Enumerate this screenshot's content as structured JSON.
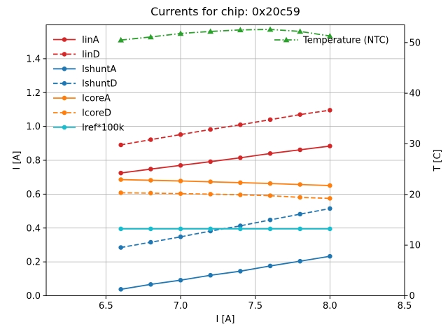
{
  "figure": {
    "background": "#ffffff",
    "text_color": "#000000",
    "grid_color": "#b0b0b0",
    "spine_color": "#000000"
  },
  "chart_data": {
    "type": "line",
    "title": "Currents for chip: 0x20c59",
    "xlabel": "I [A]",
    "ylabel": "I [A]",
    "ylabel_right": "T [C]",
    "grid": true,
    "legend_position": "upper left",
    "temperature_legend_position": "upper right",
    "xlim": [
      6.1,
      8.5
    ],
    "ylim_left": [
      0,
      1.6
    ],
    "ylim_right": [
      0,
      53.5
    ],
    "x_ticks": {
      "values": [
        6.5,
        7.0,
        7.5,
        8.0,
        8.5
      ],
      "labels": [
        "6.5",
        "7.0",
        "7.5",
        "8.0",
        "8.5"
      ]
    },
    "y_ticks_left": {
      "values": [
        0.0,
        0.2,
        0.4,
        0.6,
        0.8,
        1.0,
        1.2,
        1.4
      ],
      "labels": [
        "0.0",
        "0.2",
        "0.4",
        "0.6",
        "0.8",
        "1.0",
        "1.2",
        "1.4"
      ]
    },
    "y_ticks_right": {
      "values": [
        0,
        10,
        20,
        30,
        40,
        50
      ],
      "labels": [
        "0",
        "10",
        "20",
        "30",
        "40",
        "50"
      ]
    },
    "x": [
      6.6,
      6.8,
      7.0,
      7.2,
      7.4,
      7.6,
      7.8,
      8.0
    ],
    "series": [
      {
        "name": "IinA",
        "axis": "left",
        "color": "#d62728",
        "line_style": "solid",
        "marker": "circle",
        "values": [
          0.725,
          0.748,
          0.77,
          0.792,
          0.815,
          0.84,
          0.862,
          0.884
        ]
      },
      {
        "name": "IinD",
        "axis": "left",
        "color": "#d62728",
        "line_style": "dashed",
        "marker": "circle",
        "values": [
          0.891,
          0.922,
          0.952,
          0.982,
          1.01,
          1.04,
          1.07,
          1.096
        ]
      },
      {
        "name": "IshuntA",
        "axis": "left",
        "color": "#1f77b4",
        "line_style": "solid",
        "marker": "circle",
        "values": [
          0.038,
          0.067,
          0.092,
          0.121,
          0.145,
          0.176,
          0.204,
          0.233
        ]
      },
      {
        "name": "IshuntD",
        "axis": "left",
        "color": "#1f77b4",
        "line_style": "dashed",
        "marker": "circle",
        "values": [
          0.285,
          0.316,
          0.348,
          0.382,
          0.413,
          0.448,
          0.482,
          0.515
        ]
      },
      {
        "name": "IcoreA",
        "axis": "left",
        "color": "#ff7f0e",
        "line_style": "solid",
        "marker": "circle",
        "values": [
          0.686,
          0.682,
          0.678,
          0.673,
          0.668,
          0.663,
          0.657,
          0.651
        ]
      },
      {
        "name": "IcoreD",
        "axis": "left",
        "color": "#ff7f0e",
        "line_style": "dashed",
        "marker": "circle",
        "values": [
          0.608,
          0.606,
          0.603,
          0.6,
          0.596,
          0.591,
          0.581,
          0.575
        ]
      },
      {
        "name": "Iref*100k",
        "axis": "left",
        "color": "#17becf",
        "line_style": "solid",
        "marker": "circle",
        "values": [
          0.395,
          0.395,
          0.395,
          0.395,
          0.395,
          0.395,
          0.395,
          0.395
        ]
      },
      {
        "name": "Temperature (NTC)",
        "axis": "right",
        "color": "#2ca02c",
        "line_style": "dashdot",
        "marker": "triangle",
        "values": [
          50.5,
          51.1,
          51.8,
          52.2,
          52.5,
          52.6,
          52.2,
          51.3
        ]
      }
    ]
  }
}
